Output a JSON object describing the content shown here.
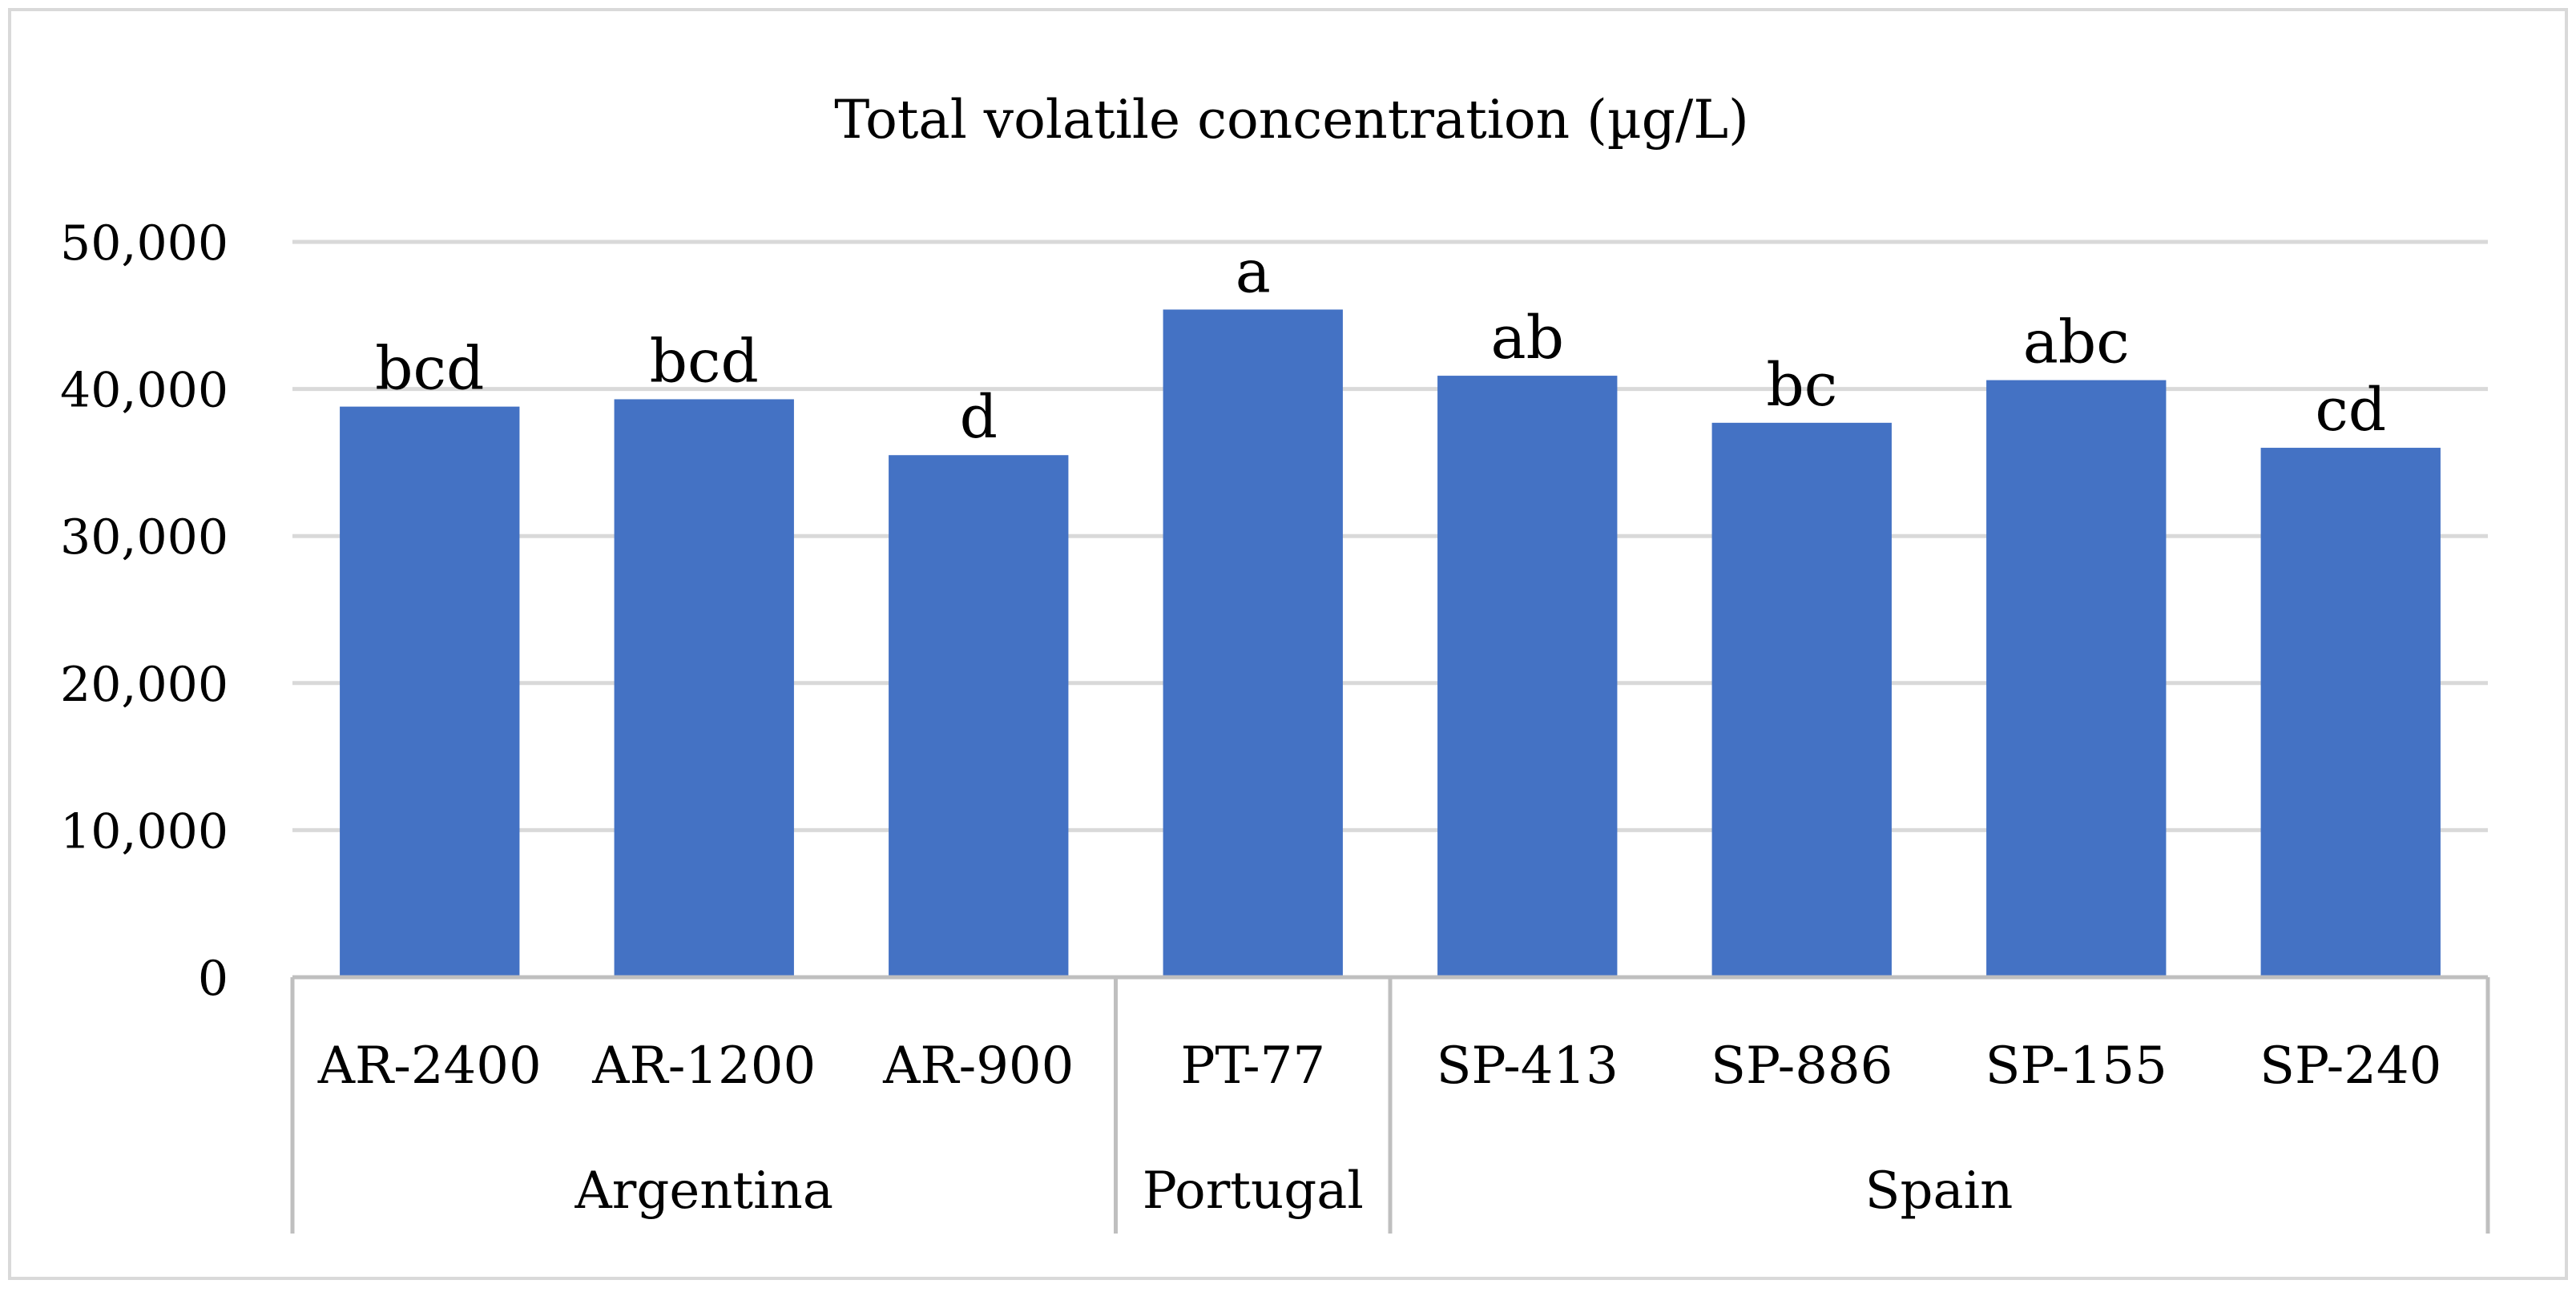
{
  "chart_data": {
    "type": "bar",
    "title": "Total volatile concentration (µg/L)",
    "xlabel": "",
    "ylabel": "",
    "ylim": [
      0,
      50000
    ],
    "yticks": [
      0,
      10000,
      20000,
      30000,
      40000,
      50000
    ],
    "ytick_labels": [
      "0",
      "10,000",
      "20,000",
      "30,000",
      "40,000",
      "50,000"
    ],
    "categories": [
      "AR-2400",
      "AR-1200",
      "AR-900",
      "PT-77",
      "SP-413",
      "SP-886",
      "SP-155",
      "SP-240"
    ],
    "values": [
      38800,
      39300,
      35500,
      45400,
      40900,
      37700,
      40600,
      36000
    ],
    "significance_labels": [
      "bcd",
      "bcd",
      "d",
      "a",
      "ab",
      "bc",
      "abc",
      "cd"
    ],
    "groups": [
      {
        "name": "Argentina",
        "count": 3
      },
      {
        "name": "Portugal",
        "count": 1
      },
      {
        "name": "Spain",
        "count": 4
      }
    ],
    "grid": true,
    "legend": "none",
    "colors": {
      "bar": "#4472C4",
      "grid": "#D9D9D9",
      "axis": "#BFBFBF",
      "text": "#000000",
      "frame": "#D9D9D9"
    }
  }
}
